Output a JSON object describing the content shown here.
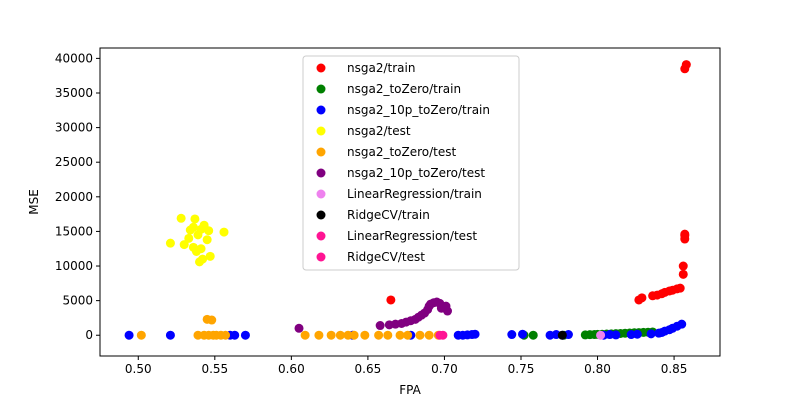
{
  "chart_data": {
    "type": "scatter",
    "title": "",
    "xlabel": "FPA",
    "ylabel": "MSE",
    "xlim": [
      0.475,
      0.88
    ],
    "ylim": [
      -3000,
      41500
    ],
    "xticks": [
      0.5,
      0.55,
      0.6,
      0.65,
      0.7,
      0.75,
      0.8,
      0.85
    ],
    "xtick_labels": [
      "0.50",
      "0.55",
      "0.60",
      "0.65",
      "0.70",
      "0.75",
      "0.80",
      "0.85"
    ],
    "yticks": [
      0,
      5000,
      10000,
      15000,
      20000,
      25000,
      30000,
      35000,
      40000
    ],
    "ytick_labels": [
      "0",
      "5000",
      "10000",
      "15000",
      "20000",
      "25000",
      "30000",
      "35000",
      "40000"
    ],
    "grid": false,
    "legend_position": "top-center",
    "series": [
      {
        "name": "nsga2/train",
        "color": "#ff0000",
        "points": [
          [
            0.665,
            5100
          ],
          [
            0.827,
            5100
          ],
          [
            0.829,
            5400
          ],
          [
            0.836,
            5700
          ],
          [
            0.839,
            5800
          ],
          [
            0.842,
            6000
          ],
          [
            0.844,
            6200
          ],
          [
            0.847,
            6400
          ],
          [
            0.849,
            6500
          ],
          [
            0.852,
            6700
          ],
          [
            0.854,
            6800
          ],
          [
            0.856,
            8800
          ],
          [
            0.856,
            10000
          ],
          [
            0.857,
            13900
          ],
          [
            0.857,
            14400
          ],
          [
            0.857,
            14600
          ],
          [
            0.857,
            38500
          ],
          [
            0.858,
            39100
          ]
        ]
      },
      {
        "name": "nsga2_toZero/train",
        "color": "#008000",
        "points": [
          [
            0.752,
            0
          ],
          [
            0.758,
            0
          ],
          [
            0.778,
            0
          ],
          [
            0.792,
            50
          ],
          [
            0.795,
            80
          ],
          [
            0.798,
            100
          ],
          [
            0.8,
            120
          ],
          [
            0.803,
            150
          ],
          [
            0.806,
            170
          ],
          [
            0.809,
            200
          ],
          [
            0.812,
            230
          ],
          [
            0.815,
            260
          ],
          [
            0.818,
            290
          ],
          [
            0.821,
            320
          ],
          [
            0.824,
            350
          ],
          [
            0.827,
            380
          ],
          [
            0.83,
            410
          ],
          [
            0.833,
            440
          ],
          [
            0.836,
            470
          ]
        ]
      },
      {
        "name": "nsga2_10p_toZero/train",
        "color": "#0000ff",
        "points": [
          [
            0.494,
            0
          ],
          [
            0.521,
            0
          ],
          [
            0.56,
            0
          ],
          [
            0.563,
            0
          ],
          [
            0.57,
            0
          ],
          [
            0.64,
            0
          ],
          [
            0.678,
            0
          ],
          [
            0.709,
            0
          ],
          [
            0.712,
            0
          ],
          [
            0.715,
            50
          ],
          [
            0.718,
            100
          ],
          [
            0.72,
            150
          ],
          [
            0.744,
            100
          ],
          [
            0.751,
            150
          ],
          [
            0.769,
            0
          ],
          [
            0.773,
            100
          ],
          [
            0.777,
            0
          ],
          [
            0.781,
            100
          ],
          [
            0.804,
            0
          ],
          [
            0.808,
            100
          ],
          [
            0.812,
            50
          ],
          [
            0.822,
            100
          ],
          [
            0.826,
            150
          ],
          [
            0.835,
            200
          ],
          [
            0.84,
            300
          ],
          [
            0.842,
            400
          ],
          [
            0.844,
            600
          ],
          [
            0.847,
            800
          ],
          [
            0.849,
            1000
          ],
          [
            0.852,
            1300
          ],
          [
            0.855,
            1600
          ]
        ]
      },
      {
        "name": "nsga2/test",
        "color": "#ffff00",
        "points": [
          [
            0.528,
            16900
          ],
          [
            0.537,
            16800
          ],
          [
            0.543,
            15900
          ],
          [
            0.536,
            15600
          ],
          [
            0.541,
            15300
          ],
          [
            0.534,
            15200
          ],
          [
            0.546,
            15100
          ],
          [
            0.556,
            14900
          ],
          [
            0.539,
            14500
          ],
          [
            0.533,
            14000
          ],
          [
            0.545,
            13800
          ],
          [
            0.521,
            13300
          ],
          [
            0.53,
            13100
          ],
          [
            0.536,
            12700
          ],
          [
            0.541,
            12500
          ],
          [
            0.538,
            12100
          ],
          [
            0.547,
            11400
          ],
          [
            0.542,
            11000
          ],
          [
            0.54,
            10600
          ]
        ]
      },
      {
        "name": "nsga2_toZero/test",
        "color": "#ffa500",
        "points": [
          [
            0.502,
            0
          ],
          [
            0.539,
            0
          ],
          [
            0.543,
            0
          ],
          [
            0.545,
            2300
          ],
          [
            0.548,
            2200
          ],
          [
            0.546,
            0
          ],
          [
            0.549,
            0
          ],
          [
            0.551,
            0
          ],
          [
            0.554,
            0
          ],
          [
            0.557,
            0
          ],
          [
            0.609,
            0
          ],
          [
            0.618,
            0
          ],
          [
            0.626,
            0
          ],
          [
            0.632,
            0
          ],
          [
            0.637,
            0
          ],
          [
            0.641,
            0
          ],
          [
            0.648,
            0
          ],
          [
            0.657,
            0
          ],
          [
            0.663,
            0
          ],
          [
            0.671,
            0
          ],
          [
            0.676,
            0
          ],
          [
            0.684,
            0
          ],
          [
            0.69,
            0
          ],
          [
            0.696,
            0
          ]
        ]
      },
      {
        "name": "nsga2_10p_toZero/test",
        "color": "#800080",
        "points": [
          [
            0.605,
            1000
          ],
          [
            0.658,
            1400
          ],
          [
            0.664,
            1500
          ],
          [
            0.668,
            1600
          ],
          [
            0.672,
            1700
          ],
          [
            0.675,
            1900
          ],
          [
            0.678,
            2100
          ],
          [
            0.681,
            2300
          ],
          [
            0.683,
            2600
          ],
          [
            0.685,
            2900
          ],
          [
            0.687,
            3200
          ],
          [
            0.689,
            3700
          ],
          [
            0.69,
            4200
          ],
          [
            0.691,
            4500
          ],
          [
            0.693,
            4700
          ],
          [
            0.695,
            4800
          ],
          [
            0.697,
            4600
          ],
          [
            0.698,
            3900
          ],
          [
            0.701,
            4200
          ],
          [
            0.702,
            3500
          ]
        ]
      },
      {
        "name": "LinearRegression/train",
        "color": "#ee82ee",
        "points": [
          [
            0.802,
            0
          ]
        ]
      },
      {
        "name": "RidgeCV/train",
        "color": "#000000",
        "points": [
          [
            0.777,
            0
          ]
        ]
      },
      {
        "name": "LinearRegression/test",
        "color": "#ff1493",
        "points": [
          [
            0.699,
            0
          ]
        ]
      },
      {
        "name": "RidgeCV/test",
        "color": "#ff1493",
        "points": [
          [
            0.697,
            0
          ]
        ]
      }
    ]
  }
}
